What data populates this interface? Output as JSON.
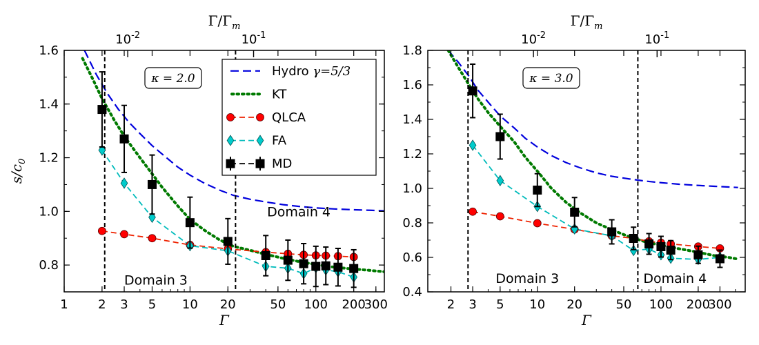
{
  "chart_data": [
    {
      "type": "line",
      "title": "",
      "xscale": "log",
      "xlim": [
        1,
        350
      ],
      "ylim": [
        0.7,
        1.6
      ],
      "xlabel": "Γ",
      "ylabel": "s/c0",
      "top_xlabel": "Γ/Γm",
      "x_ticks": [
        1,
        2,
        3,
        5,
        10,
        20,
        50,
        100,
        200,
        300
      ],
      "x_tick_labels": [
        "1",
        "2",
        "3",
        "5",
        "10",
        "20",
        "50",
        "100",
        "200",
        "300"
      ],
      "y_ticks": [
        0.8,
        1.0,
        1.2,
        1.4,
        1.6
      ],
      "y_tick_labels": [
        "0.8",
        "1.0",
        "1.2",
        "1.4",
        "1.6"
      ],
      "top_ticks": [
        {
          "at_gamma": 3.2,
          "base": "10",
          "exp": "-2"
        },
        {
          "at_gamma": 32,
          "base": "10",
          "exp": "-1"
        }
      ],
      "kappa_label": "κ = 2.0",
      "domain_lines": [
        2.1,
        23
      ],
      "annotations": [
        {
          "text": "Domain 3",
          "at": [
            3.0,
            0.745
          ]
        },
        {
          "text": "Domain 4",
          "at": [
            41,
            1.0
          ]
        }
      ],
      "legend": {
        "position": "top-right",
        "entries": [
          {
            "key": "hydro",
            "label": "Hydro γ=5/3"
          },
          {
            "key": "kt",
            "label": "KT"
          },
          {
            "key": "qlca",
            "label": "QLCA"
          },
          {
            "key": "fa",
            "label": "FA"
          },
          {
            "key": "md",
            "label": "MD"
          }
        ]
      },
      "series": {
        "hydro": {
          "x": [
            1.45,
            1.8,
            2.2,
            2.7,
            3.3,
            4,
            5,
            6.5,
            8,
            10,
            13,
            17,
            22,
            30,
            40,
            55,
            75,
            100,
            140,
            200,
            270,
            350
          ],
          "y": [
            1.6,
            1.51,
            1.44,
            1.38,
            1.33,
            1.29,
            1.245,
            1.2,
            1.165,
            1.135,
            1.105,
            1.08,
            1.06,
            1.045,
            1.035,
            1.025,
            1.018,
            1.013,
            1.009,
            1.006,
            1.004,
            1.002
          ]
        },
        "kt": {
          "x": [
            1.4,
            1.7,
            2,
            2.5,
            3,
            4,
            5,
            6,
            8,
            10,
            13,
            17,
            22,
            30,
            40,
            55,
            75,
            100,
            140,
            200,
            270,
            350
          ],
          "y": [
            1.57,
            1.49,
            1.42,
            1.34,
            1.28,
            1.2,
            1.14,
            1.09,
            1.02,
            0.97,
            0.93,
            0.895,
            0.87,
            0.855,
            0.84,
            0.825,
            0.812,
            0.802,
            0.792,
            0.785,
            0.78,
            0.775
          ]
        },
        "qlca": {
          "x": [
            2,
            3,
            5,
            10,
            20,
            40,
            60,
            80,
            100,
            120,
            150,
            200
          ],
          "y": [
            0.927,
            0.915,
            0.9,
            0.875,
            0.86,
            0.848,
            0.842,
            0.838,
            0.836,
            0.835,
            0.833,
            0.83
          ]
        },
        "fa": {
          "x": [
            2,
            3,
            5,
            10,
            20,
            40,
            60,
            80,
            100,
            120,
            150,
            200
          ],
          "y": [
            1.228,
            1.105,
            0.978,
            0.872,
            0.853,
            0.795,
            0.788,
            0.768,
            0.79,
            0.782,
            0.775,
            0.755
          ]
        },
        "md": {
          "x": [
            2,
            3,
            5,
            10,
            20,
            40,
            60,
            80,
            100,
            120,
            150,
            200
          ],
          "y": [
            1.38,
            1.27,
            1.1,
            0.958,
            0.888,
            0.835,
            0.818,
            0.805,
            0.795,
            0.797,
            0.792,
            0.787
          ],
          "err": [
            0.14,
            0.125,
            0.11,
            0.095,
            0.085,
            0.075,
            0.075,
            0.075,
            0.075,
            0.07,
            0.07,
            0.07
          ]
        }
      }
    },
    {
      "type": "line",
      "title": "",
      "xscale": "log",
      "xlim": [
        1.3,
        480
      ],
      "ylim": [
        0.4,
        1.8
      ],
      "xlabel": "Γ",
      "ylabel": "",
      "top_xlabel": "Γ/Γm",
      "x_ticks": [
        2,
        3,
        5,
        10,
        20,
        50,
        100,
        200,
        300
      ],
      "x_tick_labels": [
        "2",
        "3",
        "5",
        "10",
        "20",
        "50",
        "100",
        "200",
        "300"
      ],
      "y_ticks": [
        0.4,
        0.6,
        0.8,
        1.0,
        1.2,
        1.4,
        1.6,
        1.8
      ],
      "y_tick_labels": [
        "0.4",
        "0.6",
        "0.8",
        "1.0",
        "1.2",
        "1.4",
        "1.6",
        "1.8"
      ],
      "top_ticks": [
        {
          "at_gamma": 9.3,
          "base": "10",
          "exp": "-2"
        },
        {
          "at_gamma": 93,
          "base": "10",
          "exp": "-1"
        }
      ],
      "kappa_label": "κ = 3.0",
      "domain_lines": [
        2.75,
        65
      ],
      "annotations": [
        {
          "text": "Domain 3",
          "at": [
            4.6,
            0.48
          ]
        },
        {
          "text": "Domain 4",
          "at": [
            72,
            0.48
          ]
        }
      ],
      "series": {
        "hydro": {
          "x": [
            1.9,
            2.3,
            2.8,
            3.3,
            4,
            5,
            6.5,
            8,
            10,
            13,
            17,
            22,
            30,
            40,
            55,
            75,
            100,
            140,
            200,
            270,
            350,
            420
          ],
          "y": [
            1.8,
            1.73,
            1.65,
            1.57,
            1.5,
            1.42,
            1.35,
            1.29,
            1.24,
            1.19,
            1.15,
            1.12,
            1.09,
            1.07,
            1.055,
            1.042,
            1.033,
            1.024,
            1.017,
            1.012,
            1.008,
            1.005
          ]
        },
        "kt": {
          "x": [
            1.9,
            2.3,
            2.8,
            3.3,
            4,
            5,
            6.5,
            8,
            10,
            13,
            17,
            22,
            30,
            40,
            55,
            75,
            100,
            140,
            200,
            270,
            350,
            420
          ],
          "y": [
            1.8,
            1.7,
            1.6,
            1.52,
            1.44,
            1.36,
            1.27,
            1.18,
            1.1,
            1.0,
            0.92,
            0.86,
            0.8,
            0.76,
            0.72,
            0.69,
            0.67,
            0.65,
            0.63,
            0.61,
            0.6,
            0.59
          ]
        },
        "qlca": {
          "x": [
            3,
            5,
            10,
            20,
            40,
            60,
            80,
            100,
            120,
            200,
            300
          ],
          "y": [
            0.865,
            0.838,
            0.798,
            0.762,
            0.725,
            0.71,
            0.693,
            0.685,
            0.678,
            0.663,
            0.652
          ]
        },
        "fa": {
          "x": [
            3,
            5,
            10,
            20,
            40,
            60,
            80,
            100,
            120,
            200,
            300
          ],
          "y": [
            1.25,
            1.045,
            0.895,
            0.765,
            0.725,
            0.64,
            0.648,
            0.615,
            0.595,
            0.588,
            0.6
          ]
        },
        "md": {
          "x": [
            3,
            5,
            10,
            20,
            40,
            60,
            80,
            100,
            120,
            200,
            300
          ],
          "y": [
            1.565,
            1.3,
            0.99,
            0.862,
            0.748,
            0.71,
            0.678,
            0.662,
            0.642,
            0.615,
            0.592
          ],
          "err": [
            0.155,
            0.13,
            0.095,
            0.085,
            0.07,
            0.065,
            0.06,
            0.06,
            0.055,
            0.05,
            0.05
          ]
        }
      }
    }
  ],
  "colors": {
    "hydro": "#0000dd",
    "kt": "#007a00",
    "qlca": "#ff0000",
    "qlca_line": "#ee2200",
    "fa": "#00cccc",
    "fa_line": "#00bbbb",
    "md": "#000000"
  }
}
